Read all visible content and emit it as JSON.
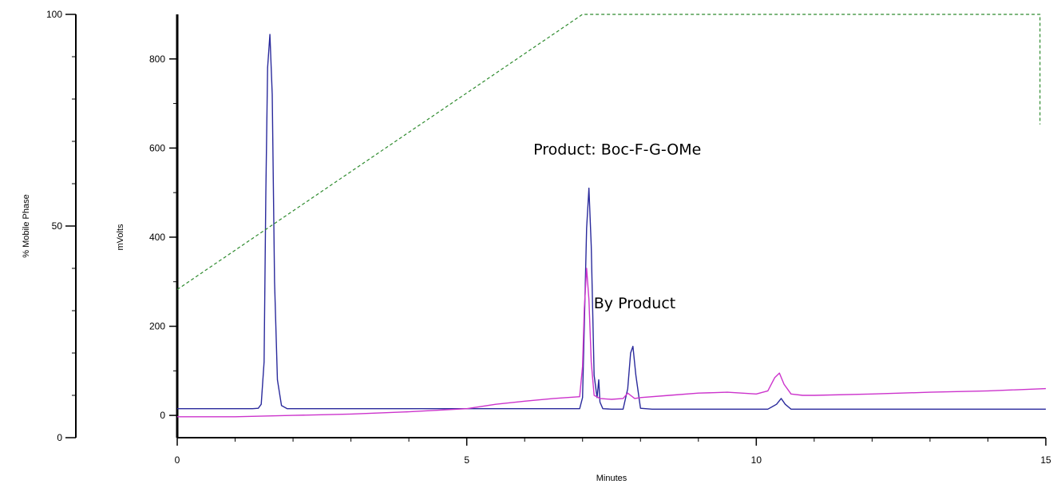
{
  "chart_data": {
    "type": "line",
    "x_axis": {
      "label": "Minutes",
      "range": [
        0,
        15
      ],
      "ticks": [
        0,
        5,
        10,
        15
      ]
    },
    "y_axis_left": {
      "label": "% Mobile Phase",
      "range": [
        0,
        100
      ],
      "ticks": [
        0,
        50,
        100
      ]
    },
    "y_axis_right": {
      "label": "mVolts",
      "range": [
        -50,
        900
      ],
      "ticks": [
        0,
        200,
        400,
        600,
        800
      ]
    },
    "annotations": [
      {
        "text": "Product: Boc-F-G-OMe",
        "x": 7.6,
        "y_mv": 585
      },
      {
        "text": "By Product",
        "x": 7.9,
        "y_mv": 240
      }
    ],
    "series": [
      {
        "name": "",
        "color": "#2a2a9c",
        "axis": "mVolts",
        "x": [
          0,
          1.3,
          1.4,
          1.45,
          1.5,
          1.53,
          1.56,
          1.6,
          1.64,
          1.68,
          1.73,
          1.8,
          1.9,
          3.0,
          5.0,
          6.0,
          6.95,
          7.0,
          7.03,
          7.07,
          7.11,
          7.15,
          7.2,
          7.25,
          7.28,
          7.3,
          7.35,
          7.5,
          7.7,
          7.78,
          7.83,
          7.87,
          7.92,
          8.0,
          8.2,
          9.0,
          10.2,
          10.35,
          10.43,
          10.5,
          10.6,
          11.0,
          13.0,
          15.0
        ],
        "y": [
          15,
          15,
          16,
          25,
          120,
          500,
          780,
          855,
          720,
          300,
          80,
          22,
          15,
          15,
          15,
          15,
          15,
          40,
          200,
          420,
          510,
          380,
          90,
          40,
          80,
          30,
          15,
          14,
          14,
          60,
          140,
          155,
          90,
          16,
          14,
          14,
          14,
          25,
          38,
          25,
          14,
          14,
          14,
          14
        ]
      },
      {
        "name": "",
        "color": "#cc33cc",
        "axis": "mVolts",
        "x": [
          0,
          1.0,
          2.0,
          3.0,
          4.0,
          5.0,
          5.5,
          6.0,
          6.5,
          6.95,
          7.0,
          7.03,
          7.07,
          7.11,
          7.15,
          7.2,
          7.3,
          7.5,
          7.7,
          7.78,
          7.83,
          7.9,
          8.0,
          8.5,
          9.0,
          9.5,
          10.0,
          10.2,
          10.32,
          10.4,
          10.48,
          10.6,
          10.8,
          11.0,
          12.0,
          13.0,
          14.0,
          15.0
        ],
        "y": [
          -3,
          -3,
          0,
          3,
          8,
          15,
          25,
          32,
          38,
          42,
          110,
          240,
          330,
          260,
          120,
          45,
          38,
          36,
          38,
          50,
          45,
          38,
          40,
          45,
          50,
          52,
          48,
          55,
          85,
          95,
          70,
          48,
          45,
          45,
          48,
          52,
          55,
          60
        ]
      },
      {
        "name": "",
        "color": "#2e8b2e",
        "axis": "% Mobile Phase",
        "dashed": true,
        "x": [
          0,
          7.0,
          14.9,
          14.9
        ],
        "y": [
          35,
          100,
          100,
          74
        ]
      }
    ]
  }
}
